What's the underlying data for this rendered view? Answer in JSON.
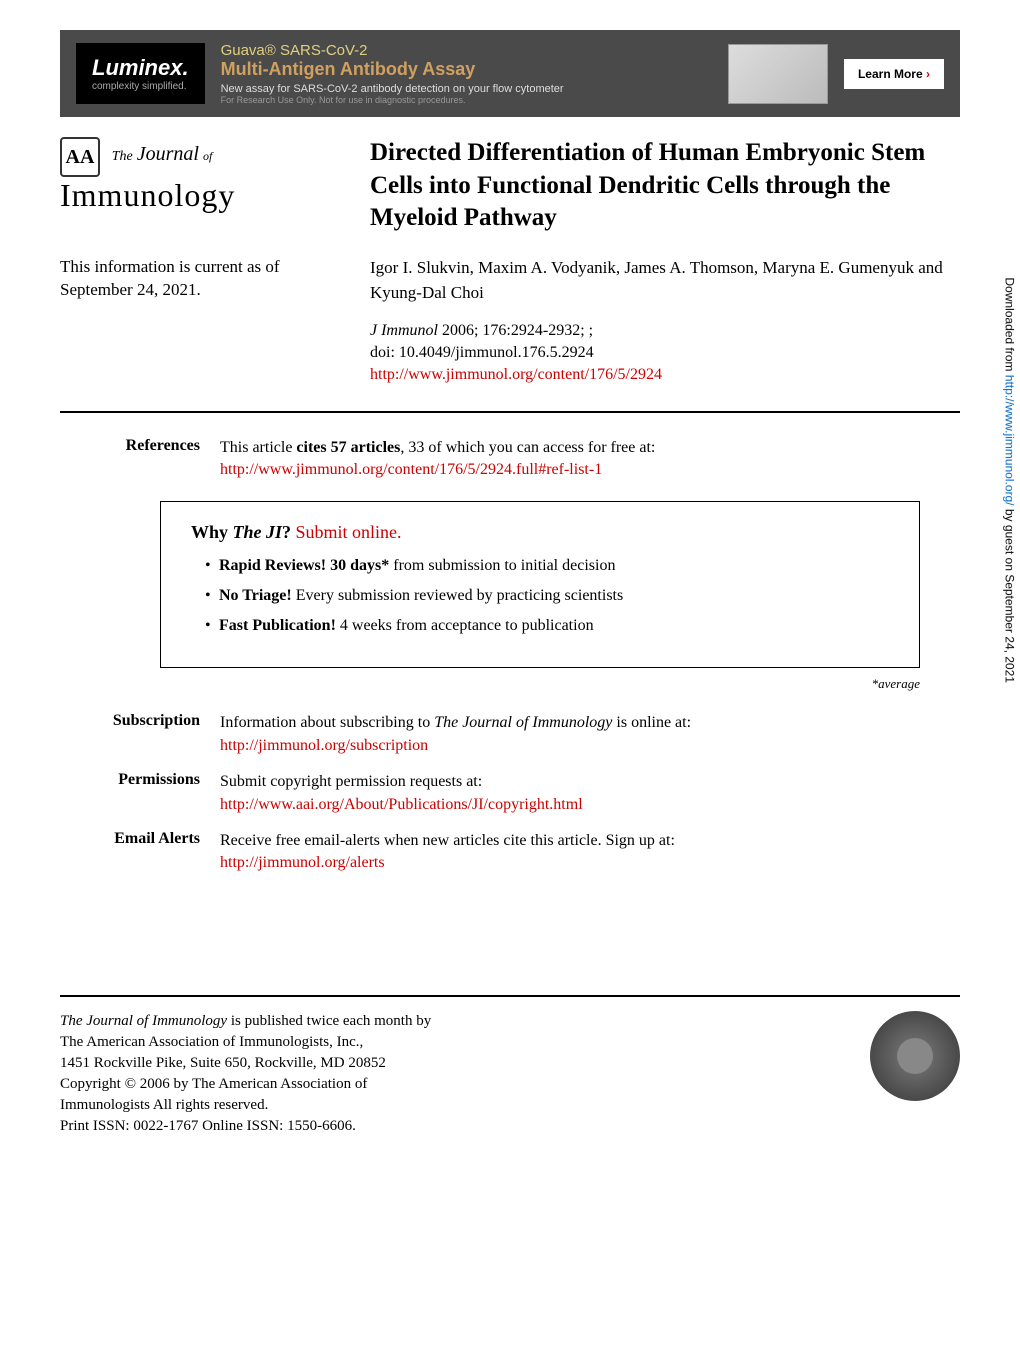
{
  "banner": {
    "logo_main": "Luminex.",
    "logo_sub": "complexity simplified.",
    "title1": "Guava® SARS-CoV-2",
    "title2": "Multi-Antigen Antibody Assay",
    "sub1": "New assay for SARS-CoV-2 antibody detection on your flow cytometer",
    "sub2": "For Research Use Only. Not for use in diagnostic procedures.",
    "learn_more": "Learn More"
  },
  "journal": {
    "icon": "AA",
    "the": "The",
    "journal": "Journal",
    "of": "of",
    "main": "Immunology"
  },
  "article": {
    "title": "Directed Differentiation of Human Embryonic Stem Cells into Functional Dendritic Cells through the Myeloid Pathway",
    "current_info": "This information is current as of September 24, 2021.",
    "authors": "Igor I. Slukvin, Maxim A. Vodyanik, James A. Thomson, Maryna E. Gumenyuk and Kyung-Dal Choi",
    "citation_journal": "J Immunol",
    "citation_details": " 2006; 176:2924-2932; ;",
    "doi": "doi: 10.4049/jimmunol.176.5.2924",
    "url": "http://www.jimmunol.org/content/176/5/2924"
  },
  "references": {
    "label": "References",
    "text_pre": "This article ",
    "text_bold": "cites 57 articles",
    "text_post": ", 33 of which you can access for free at:",
    "url": "http://www.jimmunol.org/content/176/5/2924.full#ref-list-1"
  },
  "why_box": {
    "title_pre": "Why ",
    "title_em": "The JI",
    "title_q": "? ",
    "title_link": "Submit online.",
    "item1_bold": "Rapid Reviews! 30 days*",
    "item1_rest": " from submission to initial decision",
    "item2_bold": "No Triage!",
    "item2_rest": " Every submission reviewed by practicing scientists",
    "item3_bold": "Fast Publication!",
    "item3_rest": " 4 weeks from acceptance to publication",
    "average": "*average"
  },
  "subscription": {
    "label": "Subscription",
    "text_pre": "Information about subscribing to ",
    "text_em": "The Journal of Immunology",
    "text_post": " is online at:",
    "url": "http://jimmunol.org/subscription"
  },
  "permissions": {
    "label": "Permissions",
    "text": "Submit copyright permission requests at:",
    "url": "http://www.aai.org/About/Publications/JI/copyright.html"
  },
  "alerts": {
    "label": "Email Alerts",
    "text": "Receive free email-alerts when new articles cite this article. Sign up at:",
    "url": "http://jimmunol.org/alerts"
  },
  "footer": {
    "line1_em": "The Journal of Immunology",
    "line1_rest": " is published twice each month by",
    "line2": "The American Association of Immunologists, Inc.,",
    "line3": "1451 Rockville Pike, Suite 650, Rockville, MD 20852",
    "line4": "Copyright © 2006 by The American Association of",
    "line5": "Immunologists All rights reserved.",
    "line6": "Print ISSN: 0022-1767 Online ISSN: 1550-6606."
  },
  "side": {
    "pre": "Downloaded from ",
    "url": "http://www.jimmunol.org/",
    "post": " by guest on September 24, 2021"
  }
}
